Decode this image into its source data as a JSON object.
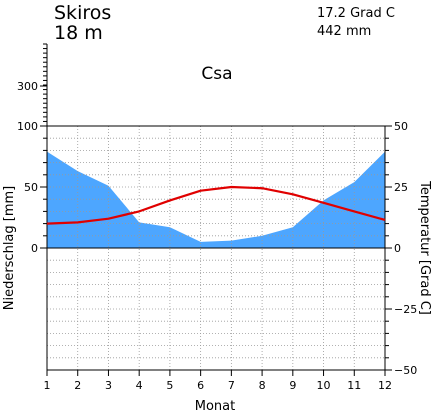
{
  "header": {
    "station": "Skiros",
    "elevation": "18  m",
    "mean_temperature": "17.2 Grad C",
    "annual_precipitation": "442 mm",
    "climate_class": "Csa"
  },
  "colors": {
    "precipitation_fill": "#4da6ff",
    "temperature_line": "#e00000",
    "grid": "#999999",
    "axis": "#000000"
  },
  "chart_data": {
    "type": "area",
    "xlabel": "Monat",
    "ylabel_left": "Niederschlag [mm]",
    "ylabel_right": "Temperatur [Grad C]",
    "x": [
      1,
      2,
      3,
      4,
      5,
      6,
      7,
      8,
      9,
      10,
      11,
      12
    ],
    "x_tick_labels": [
      "1",
      "2",
      "3",
      "4",
      "5",
      "6",
      "7",
      "8",
      "9",
      "10",
      "11",
      "12"
    ],
    "xlim": [
      1,
      12
    ],
    "precip_ylim": [
      -100,
      100
    ],
    "precip_extra_tick": 300,
    "precip_tick_labels": [
      "300",
      "100",
      "50",
      "0"
    ],
    "temp_ylim": [
      -50,
      50
    ],
    "temp_tick_labels": [
      "50",
      "25",
      "0",
      "−25",
      "−50"
    ],
    "grid": true,
    "series": [
      {
        "name": "Niederschlag",
        "values": [
          79,
          63,
          51,
          21,
          17,
          5,
          6,
          10,
          17,
          39,
          54,
          79
        ]
      },
      {
        "name": "Temperatur",
        "values": [
          10,
          10.5,
          12,
          15,
          19.5,
          23.5,
          25,
          24.5,
          22,
          18.5,
          15,
          11.5
        ]
      }
    ]
  }
}
